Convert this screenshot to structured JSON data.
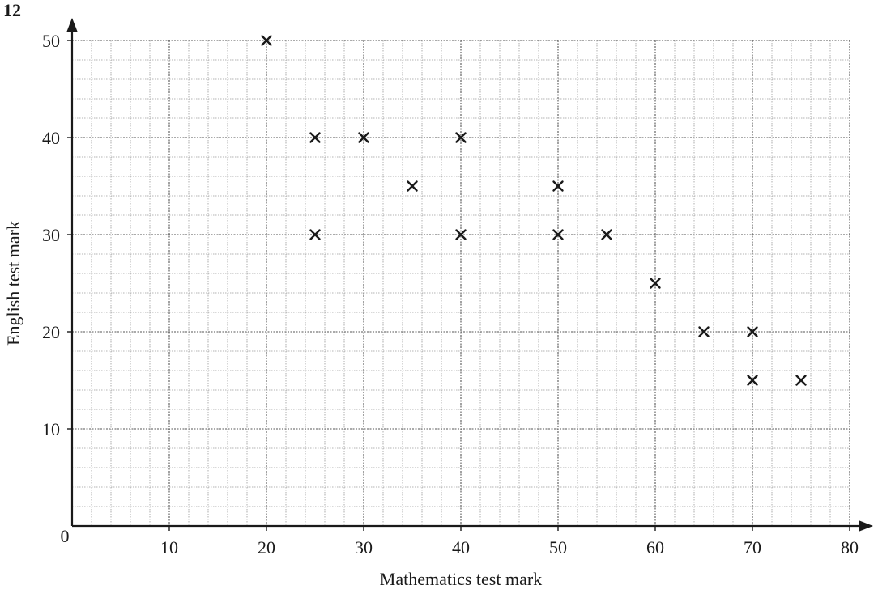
{
  "question_number": "12",
  "chart_data": {
    "type": "scatter",
    "title": "",
    "xlabel": "Mathematics test mark",
    "ylabel": "English test mark",
    "xlim": [
      0,
      80
    ],
    "ylim": [
      0,
      50
    ],
    "xticks": [
      10,
      20,
      30,
      40,
      50,
      60,
      70,
      80
    ],
    "yticks": [
      10,
      20,
      30,
      40,
      50
    ],
    "origin_label": "0",
    "grid": true,
    "grid_minor_step": 2,
    "marker": "x",
    "color": "#1a1a1a",
    "points": [
      {
        "x": 20,
        "y": 50
      },
      {
        "x": 25,
        "y": 40
      },
      {
        "x": 30,
        "y": 40
      },
      {
        "x": 40,
        "y": 40
      },
      {
        "x": 35,
        "y": 35
      },
      {
        "x": 50,
        "y": 35
      },
      {
        "x": 25,
        "y": 30
      },
      {
        "x": 40,
        "y": 30
      },
      {
        "x": 50,
        "y": 30
      },
      {
        "x": 55,
        "y": 30
      },
      {
        "x": 60,
        "y": 25
      },
      {
        "x": 65,
        "y": 20
      },
      {
        "x": 70,
        "y": 20
      },
      {
        "x": 70,
        "y": 15
      },
      {
        "x": 75,
        "y": 15
      }
    ]
  }
}
